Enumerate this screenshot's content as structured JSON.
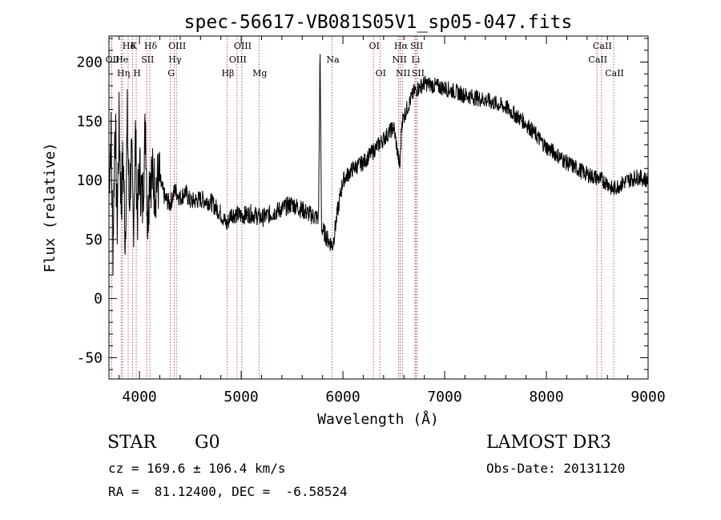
{
  "chart_data": {
    "type": "line",
    "title": "spec-56617-VB081S05V1_sp05-047.fits",
    "xlabel": "Wavelength (Å)",
    "ylabel": "Flux (relative)",
    "xlim": [
      3700,
      9000
    ],
    "ylim": [
      -68,
      222
    ],
    "x_ticks": [
      4000,
      5000,
      6000,
      7000,
      8000,
      9000
    ],
    "y_ticks": [
      -50,
      0,
      50,
      100,
      150,
      200
    ],
    "series": [
      {
        "anchors": [
          [
            3700,
            100
          ],
          [
            3720,
            140
          ],
          [
            3740,
            40
          ],
          [
            3760,
            160
          ],
          [
            3780,
            60
          ],
          [
            3800,
            150
          ],
          [
            3820,
            80
          ],
          [
            3840,
            120
          ],
          [
            3860,
            50
          ],
          [
            3880,
            150
          ],
          [
            3900,
            80
          ],
          [
            3920,
            120
          ],
          [
            3940,
            60
          ],
          [
            3960,
            140
          ],
          [
            3980,
            70
          ],
          [
            4000,
            110
          ],
          [
            4030,
            80
          ],
          [
            4060,
            150
          ],
          [
            4080,
            60
          ],
          [
            4100,
            110
          ],
          [
            4150,
            95
          ],
          [
            4200,
            100
          ],
          [
            4250,
            85
          ],
          [
            4300,
            80
          ],
          [
            4350,
            92
          ],
          [
            4400,
            85
          ],
          [
            4450,
            90
          ],
          [
            4500,
            82
          ],
          [
            4600,
            84
          ],
          [
            4700,
            82
          ],
          [
            4800,
            72
          ],
          [
            4860,
            62
          ],
          [
            4900,
            72
          ],
          [
            5000,
            70
          ],
          [
            5100,
            72
          ],
          [
            5200,
            68
          ],
          [
            5300,
            72
          ],
          [
            5400,
            76
          ],
          [
            5500,
            80
          ],
          [
            5600,
            75
          ],
          [
            5700,
            70
          ],
          [
            5760,
            68
          ],
          [
            5775,
            210
          ],
          [
            5790,
            60
          ],
          [
            5850,
            50
          ],
          [
            5900,
            45
          ],
          [
            5950,
            75
          ],
          [
            6000,
            100
          ],
          [
            6100,
            110
          ],
          [
            6200,
            115
          ],
          [
            6300,
            125
          ],
          [
            6400,
            135
          ],
          [
            6500,
            145
          ],
          [
            6560,
            110
          ],
          [
            6580,
            150
          ],
          [
            6650,
            165
          ],
          [
            6700,
            175
          ],
          [
            6800,
            182
          ],
          [
            6900,
            180
          ],
          [
            7000,
            178
          ],
          [
            7100,
            175
          ],
          [
            7200,
            172
          ],
          [
            7300,
            170
          ],
          [
            7400,
            168
          ],
          [
            7500,
            165
          ],
          [
            7600,
            162
          ],
          [
            7700,
            155
          ],
          [
            7800,
            148
          ],
          [
            7900,
            138
          ],
          [
            8000,
            128
          ],
          [
            8100,
            122
          ],
          [
            8200,
            115
          ],
          [
            8300,
            110
          ],
          [
            8400,
            105
          ],
          [
            8500,
            102
          ],
          [
            8600,
            98
          ],
          [
            8650,
            92
          ],
          [
            8700,
            95
          ],
          [
            8800,
            100
          ],
          [
            8900,
            103
          ],
          [
            9000,
            100
          ]
        ]
      }
    ],
    "lines": [
      {
        "label": "Hδ",
        "wavelength": 3889,
        "row": 0
      },
      {
        "label": "K",
        "wavelength": 3934,
        "row": 0
      },
      {
        "label": "Hδ",
        "wavelength": 4102,
        "row": 0
      },
      {
        "label": "OII",
        "wavelength": 3727,
        "row": 1
      },
      {
        "label": "He",
        "wavelength": 3820,
        "row": 1
      },
      {
        "label": "SII",
        "wavelength": 4072,
        "row": 1
      },
      {
        "label": "OIII",
        "wavelength": 4363,
        "row": 0
      },
      {
        "label": "Hγ",
        "wavelength": 4341,
        "row": 1
      },
      {
        "label": "G",
        "wavelength": 4304,
        "row": 2
      },
      {
        "label": "Hη",
        "wavelength": 3835,
        "row": 2
      },
      {
        "label": "H",
        "wavelength": 3968,
        "row": 2
      },
      {
        "label": "OIII",
        "wavelength": 5007,
        "row": 0
      },
      {
        "label": "OIII",
        "wavelength": 4959,
        "row": 1
      },
      {
        "label": "Hβ",
        "wavelength": 4861,
        "row": 2
      },
      {
        "label": "Mg",
        "wavelength": 5175,
        "row": 2
      },
      {
        "label": "Na",
        "wavelength": 5893,
        "row": 1
      },
      {
        "label": "OI",
        "wavelength": 6300,
        "row": 0
      },
      {
        "label": "OI",
        "wavelength": 6364,
        "row": 2
      },
      {
        "label": "Hα",
        "wavelength": 6563,
        "row": 0
      },
      {
        "label": "SII",
        "wavelength": 6717,
        "row": 0
      },
      {
        "label": "NII",
        "wavelength": 6548,
        "row": 1
      },
      {
        "label": "Li",
        "wavelength": 6708,
        "row": 1
      },
      {
        "label": "NII",
        "wavelength": 6584,
        "row": 2
      },
      {
        "label": "SII",
        "wavelength": 6731,
        "row": 2
      },
      {
        "label": "CaII",
        "wavelength": 8542,
        "row": 0
      },
      {
        "label": "CaII",
        "wavelength": 8498,
        "row": 1
      },
      {
        "label": "CaII",
        "wavelength": 8662,
        "row": 2
      }
    ]
  },
  "info": {
    "class_label": "STAR",
    "subclass": "G0",
    "survey": "LAMOST DR3",
    "cz": "cz = 169.6 ± 106.4 km/s",
    "obs_date": "Obs-Date: 20131120",
    "coords": "RA =  81.12400, DEC =  -6.58524"
  }
}
